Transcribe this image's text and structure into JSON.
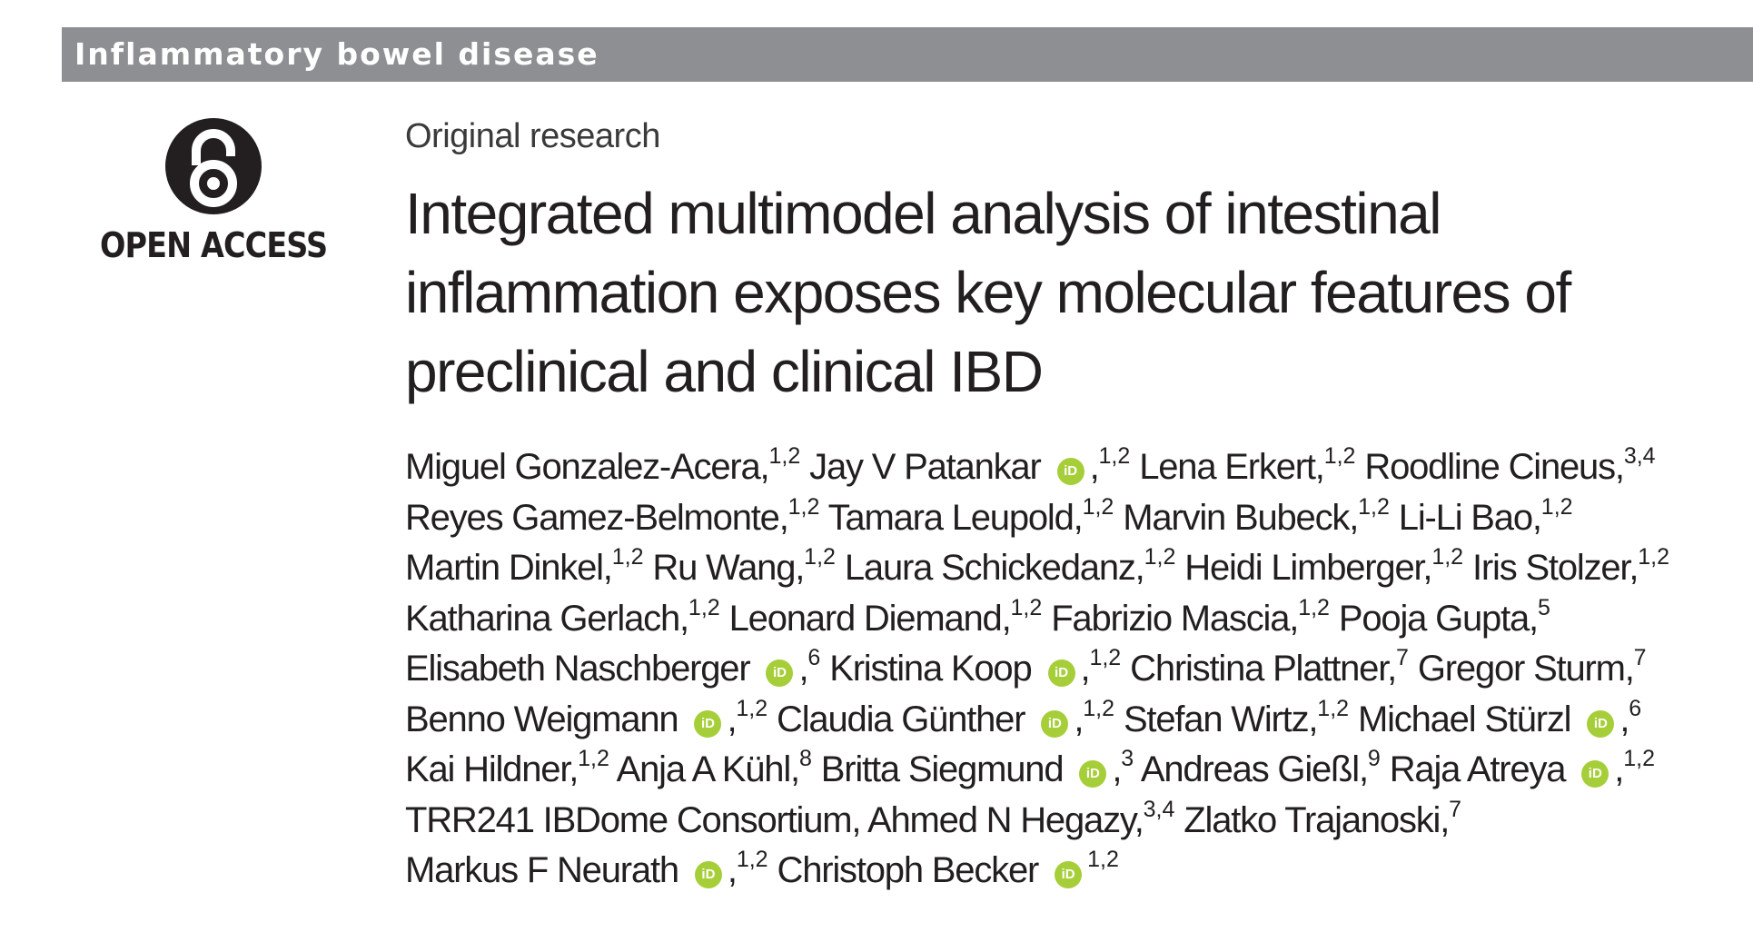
{
  "section_header": "Inflammatory bowel disease",
  "open_access": {
    "label": "OPEN ACCESS",
    "icon": "open-access-lock-icon",
    "icon_color": "#231f20"
  },
  "article_type": "Original research",
  "title_lines": [
    "Integrated multimodel analysis of intestinal",
    "inflammation exposes key molecular features of",
    "preclinical and clinical IBD"
  ],
  "orcid_icon": {
    "name": "orcid-icon",
    "text": "iD",
    "color": "#a6ce39"
  },
  "colors": {
    "header_bar": "#8d8f92",
    "text": "#231f20"
  },
  "author_lines": [
    [
      {
        "t": "Miguel Gonzalez-Acera,"
      },
      {
        "s": "1,2"
      },
      {
        "t": " Jay V Patankar"
      },
      {
        "o": true
      },
      {
        "t": ","
      },
      {
        "s": "1,2"
      },
      {
        "t": " Lena Erkert,"
      },
      {
        "s": "1,2"
      },
      {
        "t": " Roodline Cineus,"
      },
      {
        "s": "3,4"
      }
    ],
    [
      {
        "t": "Reyes Gamez-Belmonte,"
      },
      {
        "s": "1,2"
      },
      {
        "t": " Tamara Leupold,"
      },
      {
        "s": "1,2"
      },
      {
        "t": " Marvin Bubeck,"
      },
      {
        "s": "1,2"
      },
      {
        "t": " Li-Li Bao,"
      },
      {
        "s": "1,2"
      }
    ],
    [
      {
        "t": "Martin Dinkel,"
      },
      {
        "s": "1,2"
      },
      {
        "t": " Ru Wang,"
      },
      {
        "s": "1,2"
      },
      {
        "t": " Laura Schickedanz,"
      },
      {
        "s": "1,2"
      },
      {
        "t": " Heidi Limberger,"
      },
      {
        "s": "1,2"
      },
      {
        "t": " Iris Stolzer,"
      },
      {
        "s": "1,2"
      }
    ],
    [
      {
        "t": "Katharina Gerlach,"
      },
      {
        "s": "1,2"
      },
      {
        "t": " Leonard Diemand,"
      },
      {
        "s": "1,2"
      },
      {
        "t": " Fabrizio Mascia,"
      },
      {
        "s": "1,2"
      },
      {
        "t": " Pooja Gupta,"
      },
      {
        "s": "5"
      }
    ],
    [
      {
        "t": "Elisabeth Naschberger"
      },
      {
        "o": true
      },
      {
        "t": ","
      },
      {
        "s": "6"
      },
      {
        "t": " Kristina Koop"
      },
      {
        "o": true
      },
      {
        "t": ","
      },
      {
        "s": "1,2"
      },
      {
        "t": " Christina Plattner,"
      },
      {
        "s": "7"
      },
      {
        "t": " Gregor Sturm,"
      },
      {
        "s": "7"
      }
    ],
    [
      {
        "t": "Benno Weigmann"
      },
      {
        "o": true
      },
      {
        "t": ","
      },
      {
        "s": "1,2"
      },
      {
        "t": " Claudia Günther"
      },
      {
        "o": true
      },
      {
        "t": ","
      },
      {
        "s": "1,2"
      },
      {
        "t": " Stefan Wirtz,"
      },
      {
        "s": "1,2"
      },
      {
        "t": " Michael Stürzl"
      },
      {
        "o": true
      },
      {
        "t": ","
      },
      {
        "s": "6"
      }
    ],
    [
      {
        "t": "Kai Hildner,"
      },
      {
        "s": "1,2"
      },
      {
        "t": " Anja A Kühl,"
      },
      {
        "s": "8"
      },
      {
        "t": " Britta Siegmund"
      },
      {
        "o": true
      },
      {
        "t": ","
      },
      {
        "s": "3"
      },
      {
        "t": " Andreas Gießl,"
      },
      {
        "s": "9"
      },
      {
        "t": " Raja Atreya"
      },
      {
        "o": true
      },
      {
        "t": ","
      },
      {
        "s": "1,2"
      }
    ],
    [
      {
        "t": "TRR241 IBDome Consortium, Ahmed N Hegazy,"
      },
      {
        "s": "3,4"
      },
      {
        "t": " Zlatko Trajanoski,"
      },
      {
        "s": "7"
      }
    ],
    [
      {
        "t": "Markus F Neurath"
      },
      {
        "o": true
      },
      {
        "t": ","
      },
      {
        "s": "1,2"
      },
      {
        "t": " Christoph Becker"
      },
      {
        "o": true
      },
      {
        "s": "1,2"
      }
    ]
  ]
}
